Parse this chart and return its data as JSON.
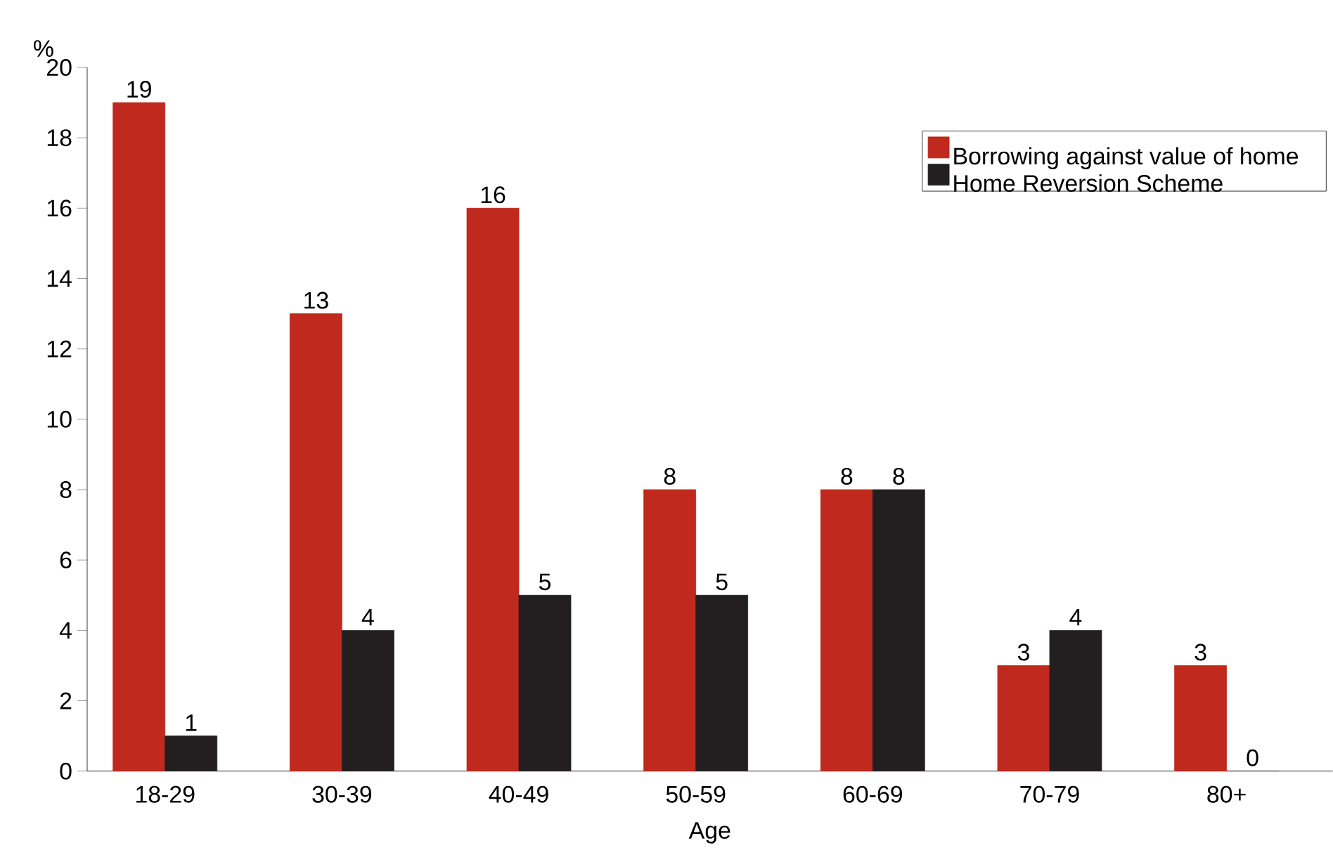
{
  "chart_data": {
    "type": "bar",
    "ylabel": "%",
    "xlabel": "Age",
    "categories": [
      "18-29",
      "30-39",
      "40-49",
      "50-59",
      "60-69",
      "70-79",
      "80+"
    ],
    "series": [
      {
        "name": "Borrowing against value of home",
        "color": "#c0291d",
        "values": [
          19,
          13,
          16,
          8,
          8,
          3,
          3
        ]
      },
      {
        "name": "Home Reversion Scheme",
        "color": "#231f20",
        "values": [
          1,
          4,
          5,
          5,
          8,
          4,
          0
        ]
      }
    ],
    "ylim": [
      0,
      20
    ],
    "yticks": [
      0,
      2,
      4,
      6,
      8,
      10,
      12,
      14,
      16,
      18,
      20
    ],
    "data_labels": true,
    "legend": "top right"
  }
}
